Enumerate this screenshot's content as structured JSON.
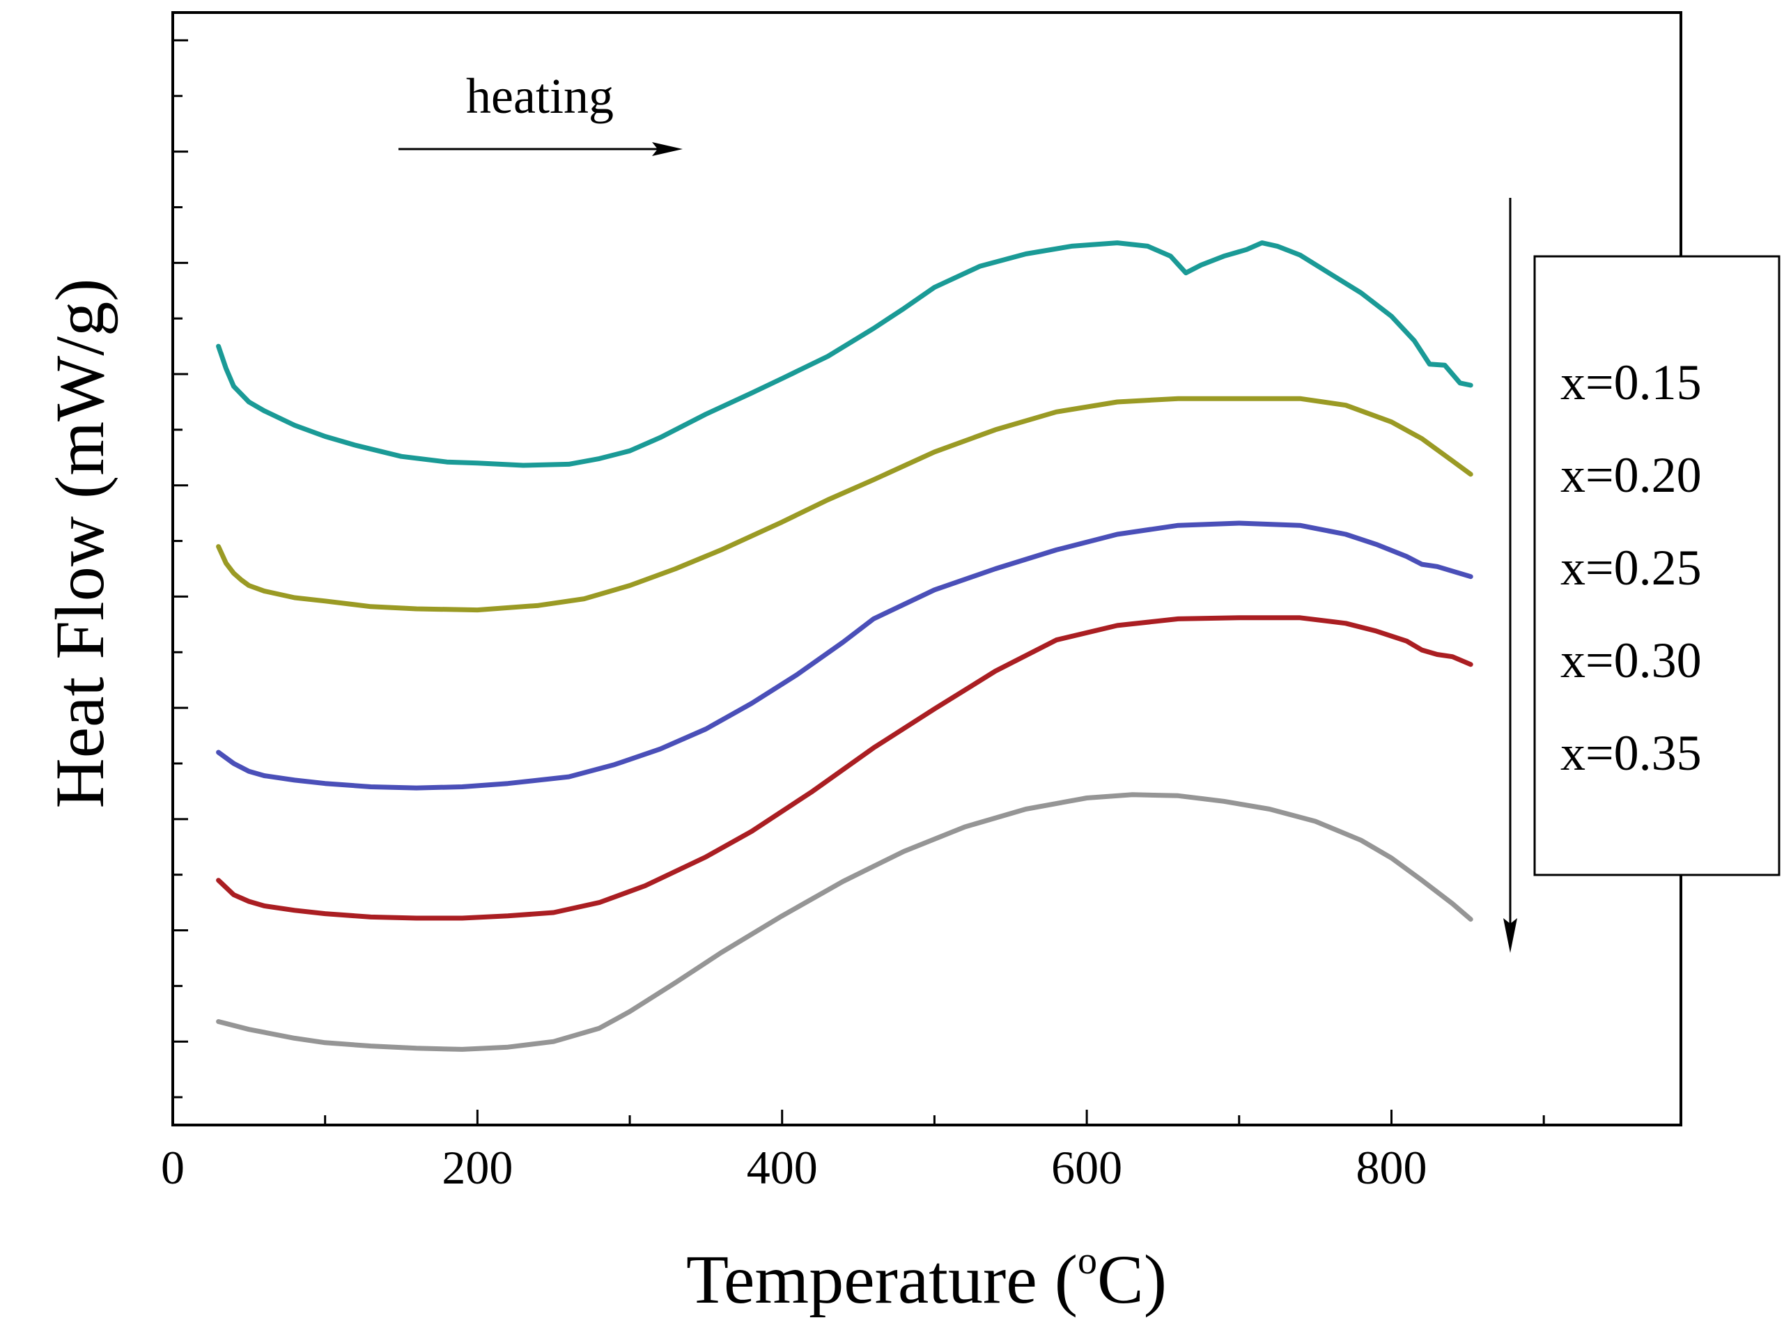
{
  "chart_data": {
    "type": "line",
    "title": "",
    "xlabel": "Temperature (",
    "xlabel_sup": "o",
    "xlabel_unit": "C)",
    "ylabel": "Heat Flow (mW/g)",
    "xlim": [
      0,
      990
    ],
    "ylim": [
      0,
      10
    ],
    "x_ticks": [
      0,
      200,
      400,
      600,
      800
    ],
    "x_minor_ticks": [
      100,
      300,
      500,
      700,
      900
    ],
    "y_ticks": [
      0.75,
      1.75,
      2.75,
      3.75,
      4.75,
      5.75,
      6.75,
      7.75,
      8.75,
      9.75
    ],
    "y_tick_labels_shown": false,
    "grid": false,
    "legend_position": "right",
    "annotations": [
      {
        "text": "heating",
        "arrow": "right",
        "x_range": [
          150,
          330
        ],
        "y": 9.15
      },
      {
        "arrow": "down",
        "x": 880,
        "y_range": [
          9.4,
          1.45
        ],
        "meaning": "legend order top-to-bottom"
      }
    ],
    "series": [
      {
        "name": "x=0.15",
        "color": "#1a9a96",
        "x": [
          30,
          35,
          40,
          45,
          50,
          60,
          80,
          100,
          120,
          150,
          180,
          200,
          230,
          260,
          280,
          300,
          320,
          350,
          380,
          400,
          430,
          460,
          480,
          500,
          530,
          560,
          590,
          620,
          640,
          655,
          665,
          675,
          690,
          705,
          715,
          725,
          740,
          760,
          780,
          800,
          815,
          825,
          835,
          845,
          852
        ],
        "y": [
          7.0,
          6.8,
          6.64,
          6.57,
          6.5,
          6.42,
          6.29,
          6.19,
          6.11,
          6.01,
          5.96,
          5.95,
          5.93,
          5.94,
          5.99,
          6.06,
          6.18,
          6.39,
          6.58,
          6.71,
          6.91,
          7.16,
          7.34,
          7.53,
          7.72,
          7.83,
          7.9,
          7.93,
          7.9,
          7.81,
          7.66,
          7.73,
          7.81,
          7.87,
          7.93,
          7.9,
          7.82,
          7.65,
          7.48,
          7.27,
          7.05,
          6.84,
          6.83,
          6.67,
          6.65
        ]
      },
      {
        "name": "x=0.20",
        "color": "#9a9a24",
        "x": [
          30,
          35,
          40,
          45,
          50,
          60,
          80,
          100,
          130,
          160,
          200,
          240,
          270,
          300,
          330,
          360,
          400,
          430,
          460,
          500,
          540,
          580,
          620,
          660,
          700,
          740,
          770,
          800,
          820,
          840,
          852
        ],
        "y": [
          5.2,
          5.05,
          4.96,
          4.9,
          4.85,
          4.8,
          4.74,
          4.71,
          4.66,
          4.64,
          4.63,
          4.67,
          4.73,
          4.85,
          5.0,
          5.17,
          5.42,
          5.62,
          5.8,
          6.05,
          6.25,
          6.41,
          6.5,
          6.53,
          6.53,
          6.53,
          6.47,
          6.32,
          6.17,
          5.97,
          5.85
        ]
      },
      {
        "name": "x=0.25",
        "color": "#4a4fb8",
        "x": [
          30,
          40,
          50,
          60,
          80,
          100,
          130,
          160,
          190,
          220,
          260,
          290,
          320,
          350,
          380,
          410,
          440,
          460,
          500,
          540,
          580,
          620,
          660,
          700,
          740,
          770,
          790,
          810,
          820,
          830,
          852
        ],
        "y": [
          3.35,
          3.25,
          3.18,
          3.14,
          3.1,
          3.07,
          3.04,
          3.03,
          3.04,
          3.07,
          3.13,
          3.24,
          3.38,
          3.56,
          3.79,
          4.05,
          4.34,
          4.55,
          4.81,
          5.0,
          5.17,
          5.31,
          5.39,
          5.41,
          5.39,
          5.31,
          5.22,
          5.11,
          5.04,
          5.02,
          4.93
        ]
      },
      {
        "name": "x=0.30",
        "color": "#aa1e22",
        "x": [
          30,
          40,
          50,
          60,
          80,
          100,
          130,
          160,
          190,
          220,
          250,
          280,
          310,
          350,
          380,
          420,
          460,
          500,
          540,
          580,
          620,
          660,
          700,
          740,
          770,
          790,
          810,
          820,
          830,
          840,
          852
        ],
        "y": [
          2.2,
          2.07,
          2.01,
          1.97,
          1.93,
          1.9,
          1.87,
          1.86,
          1.86,
          1.88,
          1.91,
          2.0,
          2.15,
          2.41,
          2.64,
          3.0,
          3.39,
          3.74,
          4.08,
          4.36,
          4.49,
          4.55,
          4.56,
          4.56,
          4.51,
          4.44,
          4.35,
          4.27,
          4.23,
          4.21,
          4.14
        ]
      },
      {
        "name": "x=0.35",
        "color": "#959595",
        "x": [
          30,
          50,
          80,
          100,
          130,
          160,
          190,
          220,
          250,
          280,
          300,
          330,
          360,
          400,
          440,
          480,
          520,
          560,
          600,
          630,
          660,
          690,
          720,
          750,
          780,
          800,
          820,
          840,
          852
        ],
        "y": [
          0.93,
          0.86,
          0.78,
          0.74,
          0.71,
          0.69,
          0.68,
          0.7,
          0.75,
          0.87,
          1.02,
          1.28,
          1.55,
          1.88,
          2.19,
          2.46,
          2.68,
          2.84,
          2.94,
          2.97,
          2.96,
          2.91,
          2.84,
          2.73,
          2.56,
          2.4,
          2.2,
          1.99,
          1.85
        ]
      }
    ]
  }
}
